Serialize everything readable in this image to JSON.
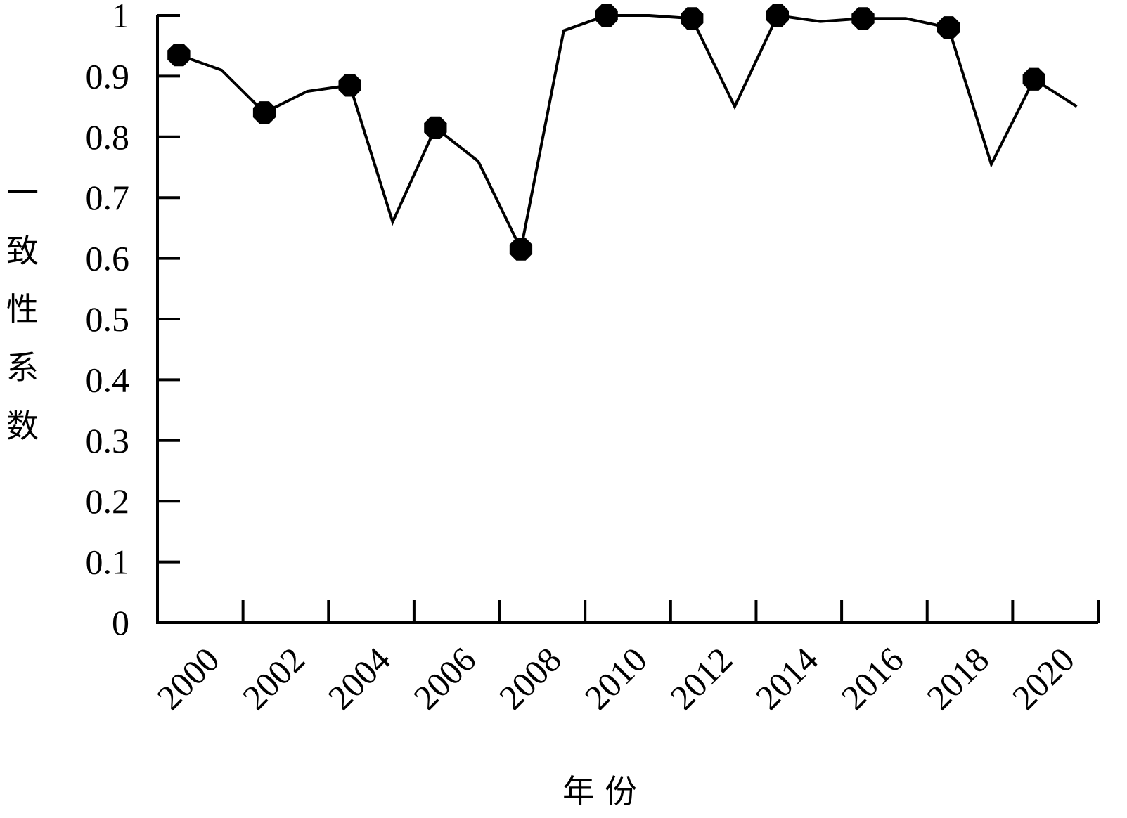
{
  "chart_data": {
    "type": "line",
    "title": "",
    "xlabel": "年份",
    "ylabel": "一致性系数",
    "ylim": [
      0,
      1
    ],
    "y_ticks": [
      "0",
      "0.1",
      "0.2",
      "0.3",
      "0.4",
      "0.5",
      "0.6",
      "0.7",
      "0.8",
      "0.9",
      "1"
    ],
    "x_ticks": [
      "2000",
      "2002",
      "2004",
      "2006",
      "2008",
      "2010",
      "2012",
      "2014",
      "2016",
      "2018",
      "2020"
    ],
    "x": [
      1999.5,
      2000.5,
      2001.5,
      2002.5,
      2003.5,
      2004.5,
      2005.5,
      2006.5,
      2007.5,
      2008.5,
      2009.5,
      2010.5,
      2011.5,
      2012.5,
      2013.5,
      2014.5,
      2015.5,
      2016.5,
      2017.5,
      2018.5,
      2019.5,
      2020.5
    ],
    "values": [
      0.935,
      0.91,
      0.84,
      0.875,
      0.885,
      0.66,
      0.815,
      0.76,
      0.615,
      0.975,
      1.0,
      1.0,
      0.995,
      0.85,
      1.0,
      0.99,
      0.995,
      0.995,
      0.98,
      0.755,
      0.895,
      0.85
    ],
    "markers": [
      true,
      false,
      true,
      false,
      true,
      false,
      true,
      false,
      true,
      false,
      true,
      false,
      true,
      false,
      true,
      false,
      true,
      false,
      true,
      false,
      true,
      false
    ],
    "grid": false,
    "colors": {
      "line": "#000000",
      "marker": "#000000",
      "axis": "#000000"
    }
  }
}
